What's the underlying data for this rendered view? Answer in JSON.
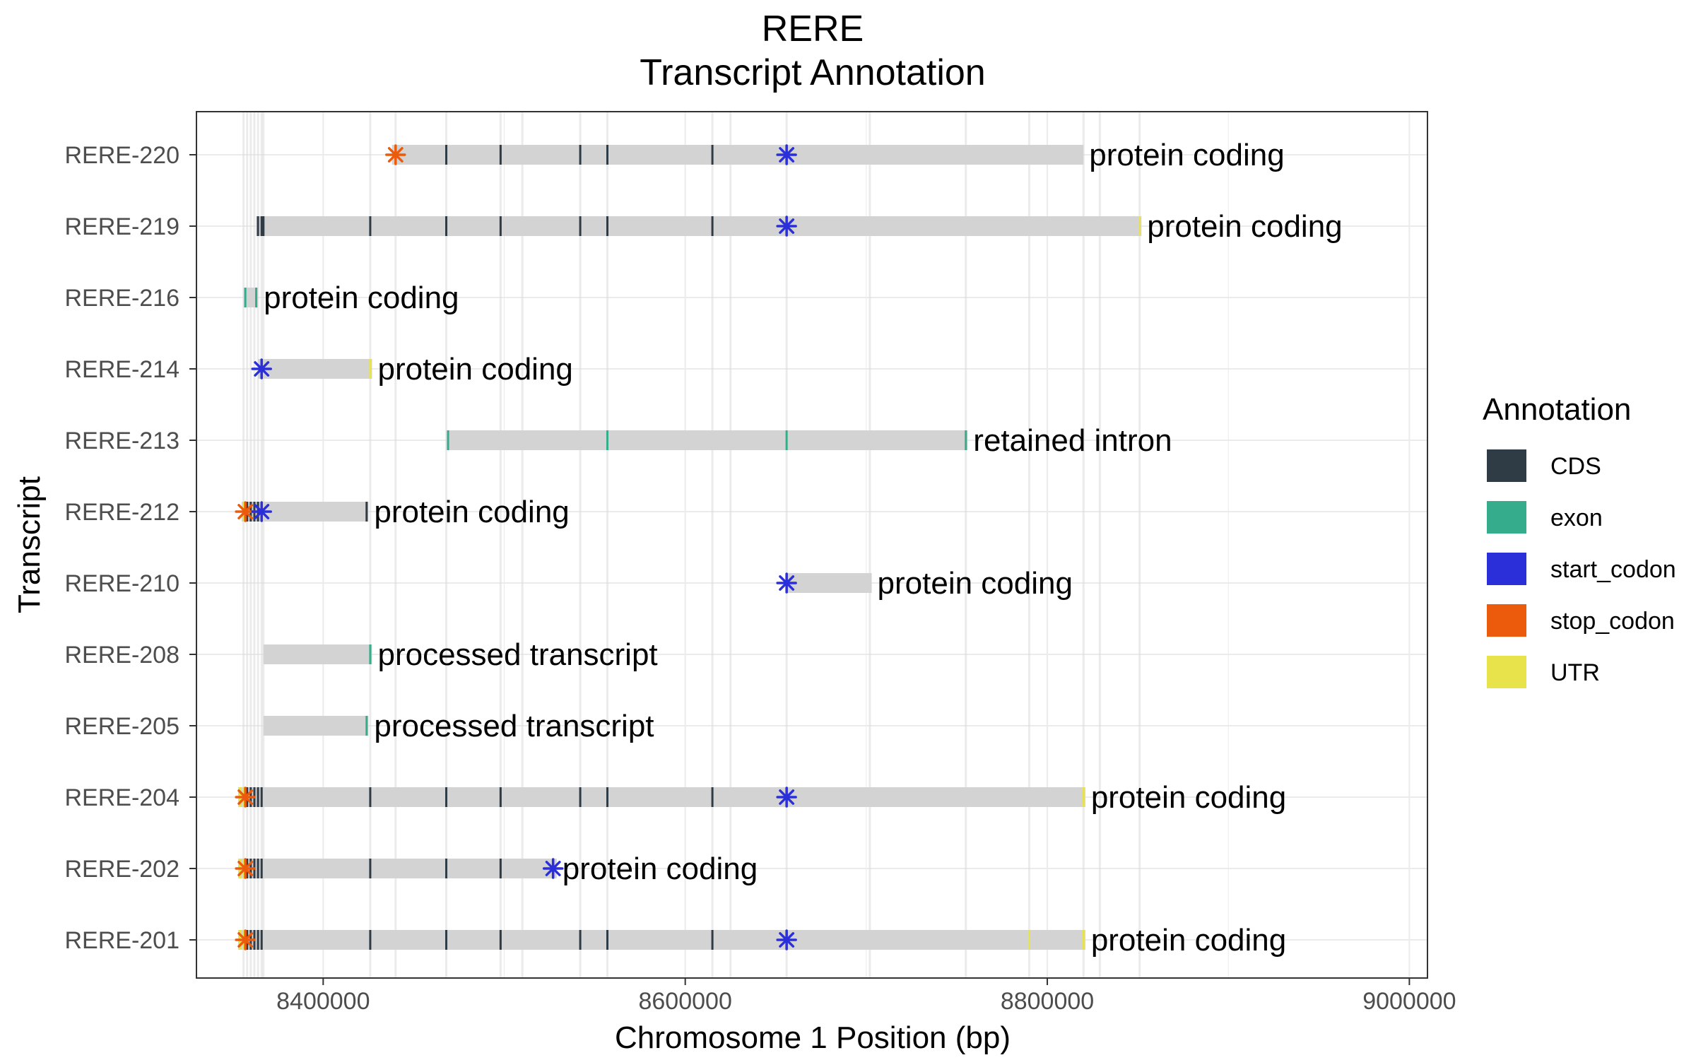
{
  "chart_data": {
    "type": "gene-track",
    "title": "RERE",
    "subtitle": "Transcript Annotation",
    "xlabel": "Chromosome 1 Position (bp)",
    "ylabel": "Transcript",
    "xlim": [
      8330000,
      9010000
    ],
    "xticks": [
      8400000,
      8600000,
      8800000,
      9000000
    ],
    "xtick_labels": [
      "8400000",
      "8600000",
      "8800000",
      "9000000"
    ],
    "grid": true,
    "legend": {
      "title": "Annotation",
      "position": "right",
      "items": [
        {
          "label": "CDS",
          "color": "#2f3b45"
        },
        {
          "label": "exon",
          "color": "#35ad8c"
        },
        {
          "label": "start_codon",
          "color": "#2b2fd9"
        },
        {
          "label": "stop_codon",
          "color": "#ec5a0c"
        },
        {
          "label": "UTR",
          "color": "#e8e34a"
        }
      ]
    },
    "transcript_bar_color": "#d3d3d3",
    "exon_lines": [
      8356000,
      8358000,
      8360000,
      8362000,
      8364000,
      8366000,
      8367000,
      8426000,
      8440000,
      8468000,
      8498000,
      8510000,
      8542000,
      8557000,
      8615000,
      8625000,
      8656000,
      8702000,
      8755000,
      8790000,
      8820000,
      8829000,
      8851000
    ],
    "transcripts": [
      {
        "name": "RERE-220",
        "start": 8438000,
        "end": 8820000,
        "type": "protein coding",
        "marks": [
          {
            "pos": 8440000,
            "kind": "UTR"
          },
          {
            "pos": 8468000,
            "kind": "CDS"
          },
          {
            "pos": 8498000,
            "kind": "CDS"
          },
          {
            "pos": 8542000,
            "kind": "CDS"
          },
          {
            "pos": 8557000,
            "kind": "CDS"
          },
          {
            "pos": 8615000,
            "kind": "CDS"
          },
          {
            "pos": 8656000,
            "kind": "CDS"
          }
        ],
        "start_codon": 8656000,
        "stop_codon": 8440000
      },
      {
        "name": "RERE-219",
        "start": 8363000,
        "end": 8852000,
        "type": "protein coding",
        "marks": [
          {
            "pos": 8364000,
            "kind": "CDS"
          },
          {
            "pos": 8366000,
            "kind": "CDS"
          },
          {
            "pos": 8367000,
            "kind": "CDS"
          },
          {
            "pos": 8426000,
            "kind": "CDS"
          },
          {
            "pos": 8468000,
            "kind": "CDS"
          },
          {
            "pos": 8498000,
            "kind": "CDS"
          },
          {
            "pos": 8542000,
            "kind": "CDS"
          },
          {
            "pos": 8557000,
            "kind": "CDS"
          },
          {
            "pos": 8615000,
            "kind": "CDS"
          },
          {
            "pos": 8656000,
            "kind": "CDS"
          },
          {
            "pos": 8851000,
            "kind": "UTR"
          }
        ],
        "start_codon": 8656000,
        "stop_codon": null
      },
      {
        "name": "RERE-216",
        "start": 8356000,
        "end": 8364000,
        "type": "protein coding",
        "marks": [
          {
            "pos": 8357000,
            "kind": "exon"
          },
          {
            "pos": 8363000,
            "kind": "exon"
          }
        ],
        "start_codon": null,
        "stop_codon": null
      },
      {
        "name": "RERE-214",
        "start": 8364000,
        "end": 8427000,
        "type": "protein coding",
        "marks": [
          {
            "pos": 8366000,
            "kind": "CDS"
          },
          {
            "pos": 8426000,
            "kind": "UTR"
          }
        ],
        "start_codon": 8366000,
        "stop_codon": null
      },
      {
        "name": "RERE-213",
        "start": 8468000,
        "end": 8756000,
        "type": "retained intron",
        "marks": [
          {
            "pos": 8469000,
            "kind": "exon"
          },
          {
            "pos": 8557000,
            "kind": "exon"
          },
          {
            "pos": 8656000,
            "kind": "exon"
          },
          {
            "pos": 8755000,
            "kind": "exon"
          }
        ],
        "start_codon": null,
        "stop_codon": null
      },
      {
        "name": "RERE-212",
        "start": 8355000,
        "end": 8425000,
        "type": "protein coding",
        "marks": [
          {
            "pos": 8356000,
            "kind": "UTR"
          },
          {
            "pos": 8358000,
            "kind": "CDS"
          },
          {
            "pos": 8360000,
            "kind": "CDS"
          },
          {
            "pos": 8362000,
            "kind": "CDS"
          },
          {
            "pos": 8364000,
            "kind": "CDS"
          },
          {
            "pos": 8424000,
            "kind": "CDS"
          }
        ],
        "start_codon": 8366000,
        "stop_codon": 8357000
      },
      {
        "name": "RERE-210",
        "start": 8656000,
        "end": 8703000,
        "type": "protein coding",
        "marks": [
          {
            "pos": 8656000,
            "kind": "CDS"
          }
        ],
        "start_codon": 8656000,
        "stop_codon": null
      },
      {
        "name": "RERE-208",
        "start": 8367000,
        "end": 8427000,
        "type": "processed transcript",
        "marks": [
          {
            "pos": 8426000,
            "kind": "exon"
          }
        ],
        "start_codon": null,
        "stop_codon": null
      },
      {
        "name": "RERE-205",
        "start": 8367000,
        "end": 8425000,
        "type": "processed transcript",
        "marks": [
          {
            "pos": 8424000,
            "kind": "exon"
          }
        ],
        "start_codon": null,
        "stop_codon": null
      },
      {
        "name": "RERE-204",
        "start": 8353000,
        "end": 8821000,
        "type": "protein coding",
        "marks": [
          {
            "pos": 8354000,
            "kind": "UTR"
          },
          {
            "pos": 8356000,
            "kind": "UTR"
          },
          {
            "pos": 8358000,
            "kind": "CDS"
          },
          {
            "pos": 8360000,
            "kind": "CDS"
          },
          {
            "pos": 8362000,
            "kind": "CDS"
          },
          {
            "pos": 8364000,
            "kind": "CDS"
          },
          {
            "pos": 8366000,
            "kind": "CDS"
          },
          {
            "pos": 8426000,
            "kind": "CDS"
          },
          {
            "pos": 8468000,
            "kind": "CDS"
          },
          {
            "pos": 8498000,
            "kind": "CDS"
          },
          {
            "pos": 8542000,
            "kind": "CDS"
          },
          {
            "pos": 8557000,
            "kind": "CDS"
          },
          {
            "pos": 8615000,
            "kind": "CDS"
          },
          {
            "pos": 8656000,
            "kind": "CDS"
          },
          {
            "pos": 8820000,
            "kind": "UTR"
          }
        ],
        "start_codon": 8656000,
        "stop_codon": 8357000
      },
      {
        "name": "RERE-202",
        "start": 8353000,
        "end": 8529000,
        "type": "protein coding",
        "marks": [
          {
            "pos": 8354000,
            "kind": "UTR"
          },
          {
            "pos": 8356000,
            "kind": "UTR"
          },
          {
            "pos": 8358000,
            "kind": "CDS"
          },
          {
            "pos": 8360000,
            "kind": "CDS"
          },
          {
            "pos": 8362000,
            "kind": "CDS"
          },
          {
            "pos": 8364000,
            "kind": "CDS"
          },
          {
            "pos": 8366000,
            "kind": "CDS"
          },
          {
            "pos": 8426000,
            "kind": "CDS"
          },
          {
            "pos": 8468000,
            "kind": "CDS"
          },
          {
            "pos": 8498000,
            "kind": "CDS"
          },
          {
            "pos": 8527000,
            "kind": "CDS"
          }
        ],
        "start_codon": 8527000,
        "stop_codon": 8357000
      },
      {
        "name": "RERE-201",
        "start": 8353000,
        "end": 8821000,
        "type": "protein coding",
        "marks": [
          {
            "pos": 8354000,
            "kind": "UTR"
          },
          {
            "pos": 8356000,
            "kind": "UTR"
          },
          {
            "pos": 8358000,
            "kind": "CDS"
          },
          {
            "pos": 8360000,
            "kind": "CDS"
          },
          {
            "pos": 8362000,
            "kind": "CDS"
          },
          {
            "pos": 8364000,
            "kind": "CDS"
          },
          {
            "pos": 8366000,
            "kind": "CDS"
          },
          {
            "pos": 8426000,
            "kind": "CDS"
          },
          {
            "pos": 8468000,
            "kind": "CDS"
          },
          {
            "pos": 8498000,
            "kind": "CDS"
          },
          {
            "pos": 8542000,
            "kind": "CDS"
          },
          {
            "pos": 8557000,
            "kind": "CDS"
          },
          {
            "pos": 8615000,
            "kind": "CDS"
          },
          {
            "pos": 8656000,
            "kind": "CDS"
          },
          {
            "pos": 8790000,
            "kind": "UTR"
          },
          {
            "pos": 8820000,
            "kind": "UTR"
          }
        ],
        "start_codon": 8656000,
        "stop_codon": 8357000
      }
    ]
  }
}
